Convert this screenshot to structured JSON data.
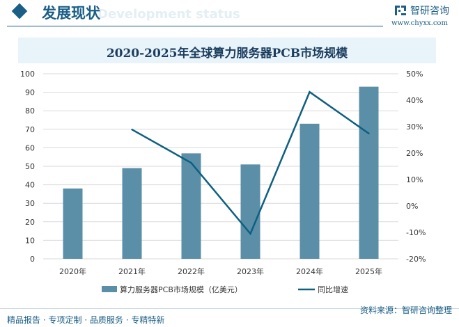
{
  "header": {
    "section_title": "发展现状",
    "section_subtitle": "Development status",
    "logo_text": "智研咨询",
    "logo_url": "www.chyxx.com",
    "accent": "#1b5e86"
  },
  "footer": {
    "left": "精品报告 · 专项定制 · 品质服务 · 专精特新",
    "right": "资料来源：智研咨询整理"
  },
  "chart_data": {
    "type": "bar+line",
    "title": "2020-2025年全球算力服务器PCB市场规模",
    "categories": [
      "2020年",
      "2021年",
      "2022年",
      "2023年",
      "2024年",
      "2025年"
    ],
    "series": [
      {
        "name": "算力服务器PCB市场规模（亿美元）",
        "type": "bar",
        "axis": "left",
        "color": "#5b8fa8",
        "values": [
          38,
          49,
          57,
          51,
          73,
          93
        ]
      },
      {
        "name": "同比增速",
        "type": "line",
        "axis": "right",
        "color": "#0e5f80",
        "values": [
          null,
          28.9,
          16.3,
          -10.5,
          43.1,
          27.4
        ]
      }
    ],
    "left_axis": {
      "ylim": [
        0,
        100
      ],
      "ticks": [
        0,
        10,
        20,
        30,
        40,
        50,
        60,
        70,
        80,
        90,
        100
      ]
    },
    "right_axis": {
      "ylim": [
        -20,
        50
      ],
      "ticks": [
        "-20%",
        "-10%",
        "0%",
        "10%",
        "20%",
        "30%",
        "40%",
        "50%"
      ]
    },
    "grid": true,
    "legend": "bottom"
  }
}
